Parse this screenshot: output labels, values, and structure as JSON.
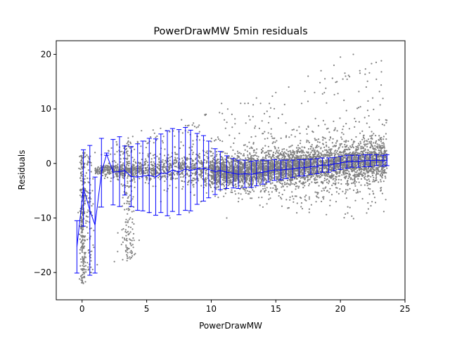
{
  "chart_data": {
    "type": "scatter",
    "title": "PowerDrawMW 5min residuals",
    "xlabel": "PowerDrawMW",
    "ylabel": "Residuals",
    "xlim": [
      -2,
      25
    ],
    "ylim": [
      -25,
      22.5
    ],
    "xticks": [
      0,
      5,
      10,
      15,
      20,
      25
    ],
    "yticks": [
      -20,
      -10,
      0,
      10,
      20
    ],
    "xtick_labels": [
      "0",
      "5",
      "10",
      "15",
      "20",
      "25"
    ],
    "ytick_labels": [
      "−20",
      "−10",
      "0",
      "10",
      "20"
    ],
    "grid": false,
    "legend": "none",
    "colors": {
      "points": "#808080",
      "errorbars": "#0000ff"
    },
    "errorbar_series": {
      "x": [
        -0.4,
        0.1,
        0.6,
        1.0,
        1.5,
        1.9,
        2.4,
        2.9,
        3.3,
        3.8,
        4.3,
        4.7,
        5.2,
        5.7,
        6.1,
        6.6,
        7.0,
        7.5,
        8.0,
        8.4,
        8.9,
        9.4,
        9.8,
        10.3,
        10.7,
        11.2,
        11.7,
        12.1,
        12.6,
        13.1,
        13.5,
        14.0,
        14.4,
        14.9,
        15.4,
        15.8,
        16.3,
        16.8,
        17.2,
        17.7,
        18.2,
        18.6,
        19.1,
        19.5,
        20.0,
        20.5,
        20.9,
        21.4,
        21.9,
        22.3,
        22.8,
        23.3,
        23.6
      ],
      "y": [
        -15.3,
        -4.5,
        -8.6,
        -11.3,
        -1.7,
        1.7,
        -1.6,
        -1.5,
        -1.3,
        -2.4,
        -2.5,
        -2.3,
        -2.2,
        -2.5,
        -1.8,
        -1.8,
        -1.2,
        -1.6,
        -1.0,
        -1.3,
        -1.0,
        -0.9,
        -1.1,
        -1.5,
        -1.3,
        -1.6,
        -1.8,
        -2.0,
        -1.9,
        -2.0,
        -1.8,
        -1.6,
        -1.4,
        -1.2,
        -1.2,
        -1.1,
        -1.0,
        -0.8,
        -0.8,
        -0.6,
        -0.5,
        -0.3,
        -0.3,
        -0.1,
        0.1,
        0.3,
        0.4,
        0.4,
        0.5,
        0.5,
        0.6,
        0.5,
        0.6
      ],
      "err": [
        4.8,
        7.0,
        11.9,
        8.8,
        6.3,
        0.2,
        6.0,
        6.4,
        4.5,
        5.5,
        6.1,
        6.4,
        6.8,
        7.0,
        7.2,
        7.8,
        7.6,
        7.8,
        7.6,
        7.4,
        6.5,
        6.0,
        5.2,
        4.2,
        3.5,
        3.0,
        2.7,
        2.6,
        2.5,
        2.4,
        2.3,
        2.2,
        2.0,
        1.9,
        1.8,
        1.7,
        1.6,
        1.5,
        1.5,
        1.4,
        1.4,
        1.3,
        1.3,
        1.2,
        1.2,
        1.2,
        1.1,
        1.1,
        1.1,
        1.1,
        1.0,
        1.0,
        1.0
      ]
    },
    "scatter_points_note": "dense grey residual cloud; see points array",
    "scatter_points": [
      [
        -0.3,
        -9
      ],
      [
        -0.2,
        -13
      ],
      [
        0.0,
        -21
      ],
      [
        0.1,
        -20
      ],
      [
        0.1,
        -18
      ],
      [
        0.0,
        -16
      ],
      [
        0.2,
        -14
      ],
      [
        0.1,
        -10
      ],
      [
        0.2,
        -7
      ],
      [
        0.1,
        -3
      ],
      [
        0.2,
        0
      ],
      [
        0.0,
        -1
      ],
      [
        0.3,
        -5
      ],
      [
        0.1,
        -22
      ],
      [
        0.0,
        -19.5
      ],
      [
        0.2,
        -17
      ],
      [
        0.2,
        2
      ],
      [
        0.6,
        -12
      ],
      [
        0.6,
        -17
      ],
      [
        0.8,
        -5
      ],
      [
        0.7,
        -20
      ],
      [
        1.0,
        -11
      ],
      [
        1.0,
        2
      ],
      [
        1.3,
        -8
      ],
      [
        1.5,
        1.6
      ],
      [
        2.2,
        1.7
      ],
      [
        2.5,
        -18
      ],
      [
        2.8,
        -3
      ],
      [
        2.9,
        3
      ],
      [
        3.2,
        -12
      ],
      [
        3.3,
        -14
      ],
      [
        3.4,
        -15
      ],
      [
        3.5,
        -17
      ],
      [
        3.6,
        -13
      ],
      [
        3.8,
        -16
      ],
      [
        3.9,
        3
      ],
      [
        3.6,
        0
      ],
      [
        3.7,
        -7
      ],
      [
        4.0,
        -8
      ],
      [
        4.3,
        4
      ],
      [
        4.6,
        6
      ],
      [
        5.0,
        -3
      ],
      [
        5.2,
        -9
      ],
      [
        5.6,
        1
      ],
      [
        5.8,
        5
      ],
      [
        6.1,
        -7
      ],
      [
        6.5,
        6
      ],
      [
        6.8,
        -10
      ],
      [
        7.2,
        3
      ],
      [
        7.7,
        8
      ],
      [
        8.0,
        6
      ],
      [
        8.3,
        -9
      ],
      [
        8.6,
        2
      ],
      [
        8.9,
        5
      ],
      [
        9.2,
        -7
      ],
      [
        9.6,
        9
      ],
      [
        10.0,
        4
      ],
      [
        10.3,
        -6
      ],
      [
        10.8,
        11
      ],
      [
        11.2,
        -10
      ],
      [
        11.6,
        9
      ],
      [
        12.1,
        -7
      ],
      [
        12.6,
        11
      ],
      [
        13.0,
        8
      ],
      [
        13.5,
        12
      ],
      [
        14.0,
        -8
      ],
      [
        14.5,
        11
      ],
      [
        15.0,
        13
      ],
      [
        15.5,
        9
      ],
      [
        16.0,
        14
      ],
      [
        16.5,
        -6
      ],
      [
        17.0,
        11
      ],
      [
        17.5,
        16
      ],
      [
        18.0,
        13
      ],
      [
        18.5,
        17
      ],
      [
        19.0,
        -5
      ],
      [
        19.5,
        18
      ],
      [
        20.0,
        19.5
      ],
      [
        20.4,
        16
      ],
      [
        21.0,
        20
      ],
      [
        21.5,
        17
      ],
      [
        22.0,
        14
      ],
      [
        22.5,
        12
      ],
      [
        23.0,
        8
      ],
      [
        23.4,
        7
      ]
    ]
  }
}
